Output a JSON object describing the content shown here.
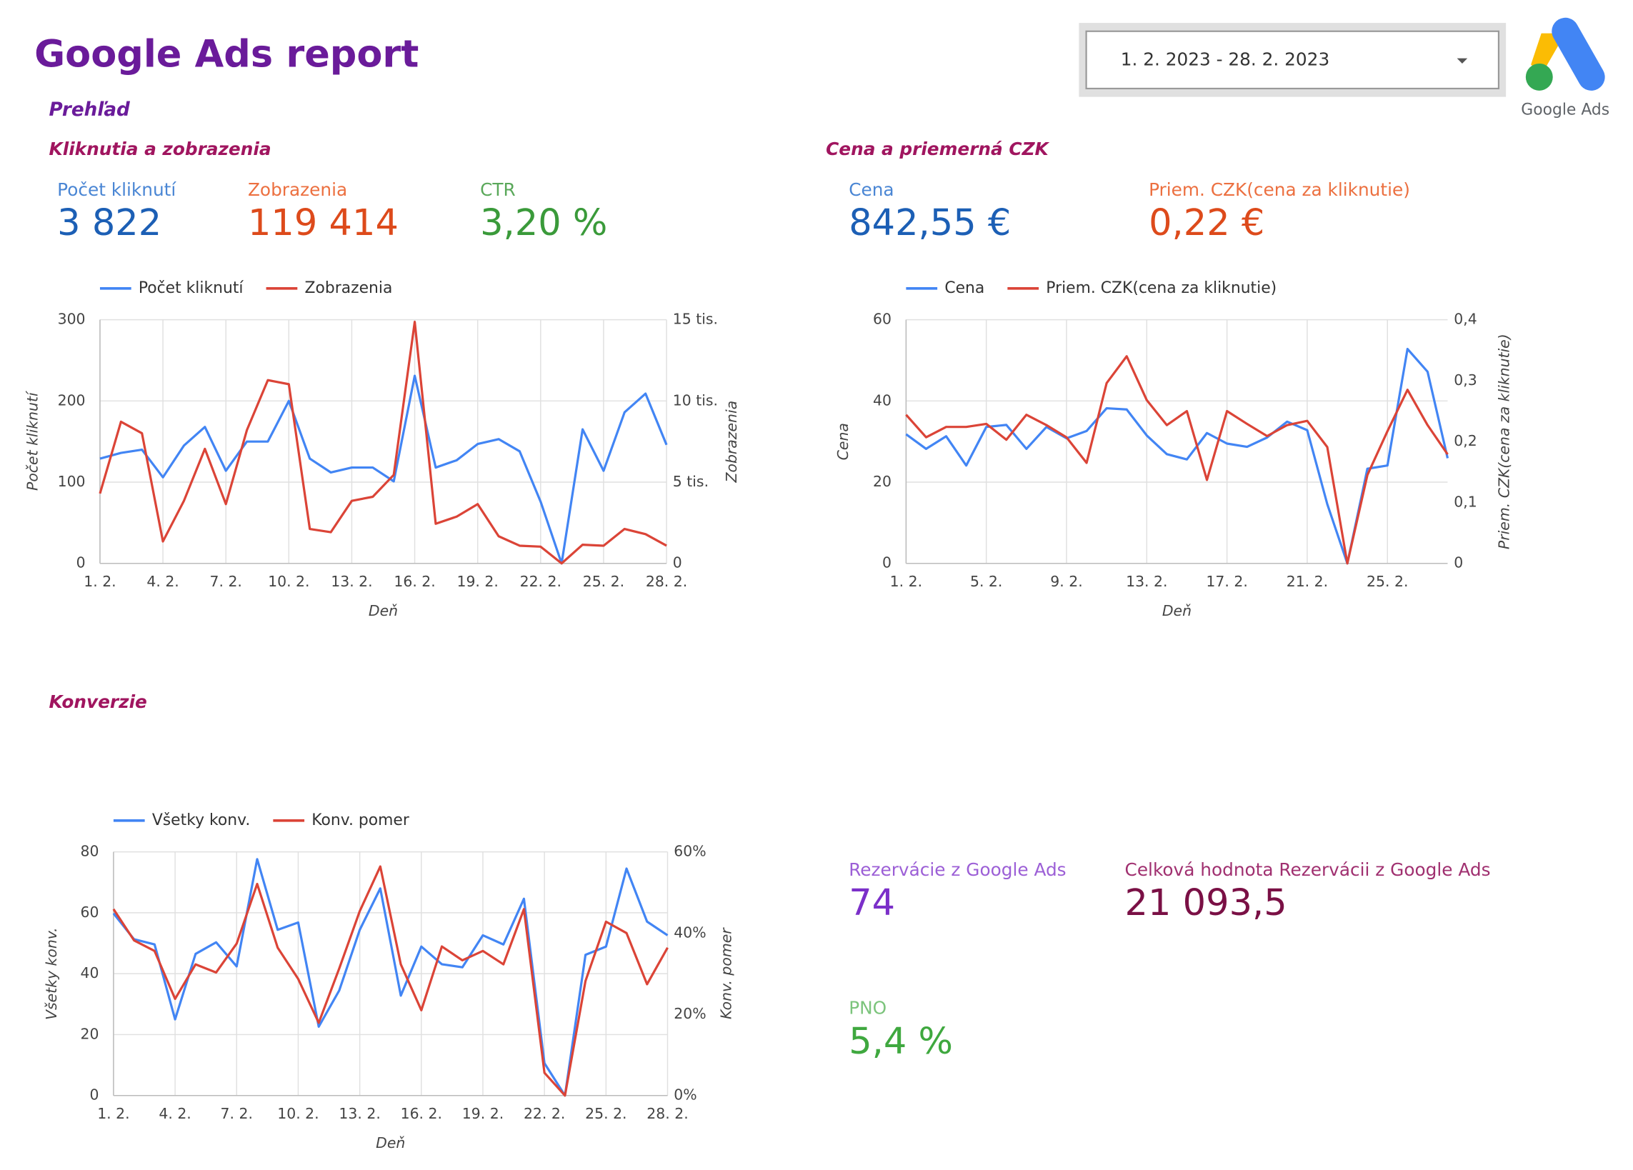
{
  "header": {
    "title": "Google Ads report",
    "date_range": "1. 2. 2023 - 28. 2. 2023",
    "logo_text": "Google Ads",
    "overview": "Prehľad"
  },
  "sections": [
    "Kliknutia a zobrazenia",
    "Cena a priemerná CZK",
    "Konverzie"
  ],
  "kpis": [
    {
      "label": "Počet kliknutí",
      "value": "3 822",
      "label_color": "#4a86d4",
      "color": "#1c5fb5"
    },
    {
      "label": "Zobrazenia",
      "value": "119 414",
      "label_color": "#ec7040",
      "color": "#dd4a1b"
    },
    {
      "label": "CTR",
      "value": "3,20 %",
      "label_color": "#5aa85a",
      "color": "#3a9a3a"
    },
    {
      "label": "Cena",
      "value": "842,55 €",
      "label_color": "#4a86d4",
      "color": "#1c5fb5"
    },
    {
      "label": "Priem. CZK(cena za kliknutie)",
      "value": "0,22 €",
      "label_color": "#ec7040",
      "color": "#dd4a1b"
    },
    {
      "label": "Rezervácie z Google Ads",
      "value": "74",
      "label_color": "#9c5fd6",
      "color": "#7b2fc9"
    },
    {
      "label": "Celková hodnota Rezervácii z Google Ads",
      "value": "21 093,5",
      "label_color": "#a03070",
      "color": "#7a1045"
    },
    {
      "label": "PNO",
      "value": "5,4 %",
      "label_color": "#7cc47c",
      "color": "#3fa83f"
    }
  ],
  "chart_data": [
    {
      "type": "line",
      "x_label": "Deň",
      "y_label": "Počet kliknutí",
      "y2_label": "Zobrazenia",
      "categories": [
        "1. 2.",
        null,
        null,
        "4. 2.",
        null,
        null,
        "7. 2.",
        null,
        null,
        "10. 2.",
        null,
        null,
        "13. 2.",
        null,
        null,
        "16. 2.",
        null,
        null,
        "19. 2.",
        null,
        null,
        "22. 2.",
        null,
        null,
        "25. 2.",
        null,
        null,
        "28. 2."
      ],
      "series": [
        {
          "name": "Počet kliknutí",
          "color": "#4285f4",
          "values": [
            129,
            136,
            140,
            106,
            145,
            168,
            114,
            150,
            150,
            200,
            129,
            112,
            118,
            118,
            101,
            231,
            118,
            127,
            147,
            153,
            138,
            76,
            0,
            165,
            114,
            186,
            209,
            146
          ]
        },
        {
          "name": "Zobrazenia",
          "color": "#db4437",
          "axis": "y2",
          "values": [
            4300,
            8720,
            8010,
            1350,
            3850,
            7050,
            3650,
            8200,
            11280,
            11030,
            2120,
            1920,
            3850,
            4100,
            5450,
            14870,
            2440,
            2880,
            3650,
            1670,
            1090,
            1030,
            0,
            1150,
            1090,
            2120,
            1800,
            1090
          ]
        }
      ],
      "ylim": [
        0,
        300
      ],
      "yticks": [
        0,
        100,
        200,
        300
      ],
      "y2lim": [
        0,
        15000
      ],
      "y2ticks": [
        0,
        {
          "value": 5000,
          "label": "5 tis."
        },
        {
          "value": 10000,
          "label": "10 tis."
        },
        {
          "value": 15000,
          "label": "15 tis."
        }
      ],
      "grid": true,
      "legend": "top-left"
    },
    {
      "type": "line",
      "x_label": "Deň",
      "y_label": "Cena",
      "y2_label": "Priem. CZK(cena za kliknutie)",
      "categories": [
        "1. 2.",
        null,
        null,
        null,
        "5. 2.",
        null,
        null,
        null,
        "9. 2.",
        null,
        null,
        null,
        "13. 2.",
        null,
        null,
        null,
        "17. 2.",
        null,
        null,
        null,
        "21. 2.",
        null,
        null,
        null,
        "25. 2.",
        null,
        null,
        null
      ],
      "series": [
        {
          "name": "Cena",
          "color": "#4285f4",
          "values": [
            31.8,
            28.2,
            31.3,
            24.1,
            33.6,
            34.1,
            28.2,
            33.6,
            30.8,
            32.6,
            38.2,
            37.9,
            31.5,
            26.9,
            25.6,
            32.1,
            29.5,
            28.7,
            31.0,
            34.9,
            32.8,
            14.6,
            0,
            23.3,
            24.1,
            52.8,
            47.2,
            25.9
          ]
        },
        {
          "name": "Priem. CZK(cena za kliknutie)",
          "color": "#db4437",
          "axis": "y2",
          "values": [
            0.244,
            0.207,
            0.224,
            0.224,
            0.229,
            0.203,
            0.244,
            0.227,
            0.207,
            0.165,
            0.296,
            0.34,
            0.268,
            0.227,
            0.25,
            0.137,
            0.25,
            0.229,
            0.209,
            0.227,
            0.234,
            0.191,
            0,
            0.145,
            0.217,
            0.285,
            0.227,
            0.179
          ]
        }
      ],
      "ylim": [
        0,
        60
      ],
      "yticks": [
        0,
        20,
        40,
        60
      ],
      "y2lim": [
        0,
        0.4
      ],
      "y2ticks": [
        0,
        {
          "value": 0.1,
          "label": "0,1"
        },
        {
          "value": 0.2,
          "label": "0,2"
        },
        {
          "value": 0.3,
          "label": "0,3"
        },
        {
          "value": 0.4,
          "label": "0,4"
        }
      ],
      "grid": true,
      "legend": "top-left"
    },
    {
      "type": "line",
      "x_label": "Deň",
      "y_label": "Všetky konv.",
      "y2_label": "Konv. pomer",
      "categories": [
        "1. 2.",
        null,
        null,
        "4. 2.",
        null,
        null,
        "7. 2.",
        null,
        null,
        "10. 2.",
        null,
        null,
        "13. 2.",
        null,
        null,
        "16. 2.",
        null,
        null,
        "19. 2.",
        null,
        null,
        "22. 2.",
        null,
        null,
        "25. 2.",
        null,
        null,
        "28. 2."
      ],
      "series": [
        {
          "name": "Všetky konv.",
          "color": "#4285f4",
          "values": [
            59.8,
            51.3,
            49.6,
            25,
            46.5,
            50.3,
            42.4,
            77.6,
            54.4,
            56.8,
            22.6,
            34.5,
            54.4,
            68,
            32.8,
            48.9,
            43.1,
            42.1,
            52.6,
            49.6,
            64.6,
            10.6,
            0,
            46.2,
            48.9,
            74.5,
            57.1,
            52.6
          ]
        },
        {
          "name": "Konv. pomer",
          "color": "#db4437",
          "axis": "y2",
          "values": [
            45.9,
            38.2,
            35.6,
            23.8,
            32.3,
            30.3,
            37.4,
            52.1,
            36.4,
            28.7,
            17.9,
            31.3,
            45.4,
            56.4,
            32.3,
            21,
            36.7,
            33.3,
            35.6,
            32.3,
            45.9,
            5.6,
            0,
            28.2,
            42.8,
            40,
            27.4,
            36.4
          ]
        }
      ],
      "ylim": [
        0,
        80
      ],
      "yticks": [
        0,
        20,
        40,
        60,
        80
      ],
      "y2lim": [
        0,
        60
      ],
      "y2ticks": [
        {
          "value": 0,
          "label": "0%"
        },
        {
          "value": 20,
          "label": "20%"
        },
        {
          "value": 40,
          "label": "40%"
        },
        {
          "value": 60,
          "label": "60%"
        }
      ],
      "grid": true,
      "legend": "top-left"
    }
  ]
}
